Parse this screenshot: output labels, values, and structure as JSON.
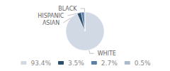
{
  "chart_data": {
    "type": "pie",
    "categories": [
      "WHITE",
      "ASIAN",
      "HISPANIC",
      "BLACK"
    ],
    "values": [
      93.4,
      3.5,
      2.7,
      0.5
    ],
    "value_labels": [
      "93.4%",
      "3.5%",
      "2.7%",
      "0.5%"
    ],
    "colors": [
      "#d0d9e4",
      "#2d4f6b",
      "#5b7fa6",
      "#adbccc"
    ],
    "legend": "bottom"
  }
}
